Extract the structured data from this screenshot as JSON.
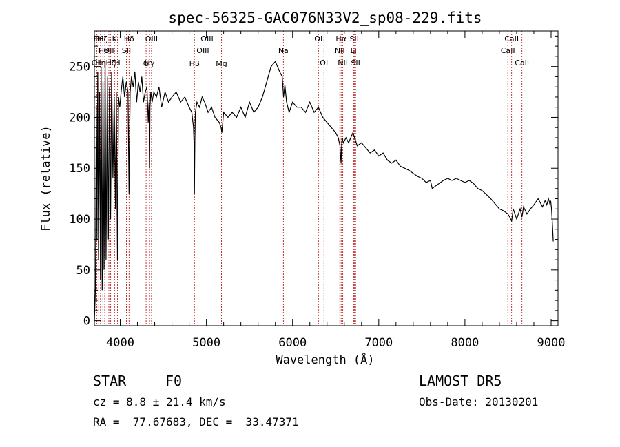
{
  "chart_data": {
    "type": "line",
    "title": "spec-56325-GAC076N33V2_sp08-229.fits",
    "xlabel": "Wavelength (Å)",
    "ylabel": "Flux (relative)",
    "xlim": [
      3700,
      9080
    ],
    "ylim": [
      -5,
      285
    ],
    "xticks": [
      4000,
      5000,
      6000,
      7000,
      8000,
      9000
    ],
    "yticks": [
      0,
      50,
      100,
      150,
      200,
      250
    ],
    "grid": false,
    "series": [
      {
        "color": "#000000",
        "x": [
          3700,
          3712,
          3722,
          3730,
          3738,
          3748,
          3760,
          3770,
          3778,
          3790,
          3800,
          3812,
          3825,
          3835,
          3850,
          3862,
          3875,
          3888,
          3900,
          3915,
          3930,
          3945,
          3955,
          3968,
          3980,
          3995,
          4010,
          4030,
          4050,
          4070,
          4090,
          4102,
          4115,
          4130,
          4150,
          4170,
          4190,
          4210,
          4230,
          4250,
          4270,
          4290,
          4310,
          4325,
          4335,
          4340,
          4345,
          4355,
          4370,
          4390,
          4420,
          4450,
          4480,
          4520,
          4560,
          4600,
          4650,
          4700,
          4750,
          4800,
          4830,
          4850,
          4856,
          4861,
          4866,
          4872,
          4890,
          4920,
          4950,
          4980,
          5020,
          5060,
          5100,
          5150,
          5170,
          5180,
          5200,
          5250,
          5300,
          5350,
          5400,
          5450,
          5500,
          5550,
          5600,
          5650,
          5700,
          5750,
          5800,
          5850,
          5880,
          5895,
          5910,
          5930,
          5960,
          6000,
          6050,
          6100,
          6150,
          6200,
          6250,
          6300,
          6350,
          6400,
          6450,
          6500,
          6530,
          6550,
          6558,
          6563,
          6568,
          6575,
          6590,
          6620,
          6650,
          6700,
          6720,
          6750,
          6800,
          6850,
          6900,
          6950,
          7000,
          7050,
          7100,
          7150,
          7200,
          7250,
          7300,
          7350,
          7400,
          7450,
          7500,
          7550,
          7600,
          7620,
          7650,
          7700,
          7750,
          7800,
          7850,
          7900,
          7950,
          8000,
          8050,
          8100,
          8150,
          8200,
          8250,
          8300,
          8350,
          8400,
          8450,
          8498,
          8520,
          8542,
          8560,
          8600,
          8640,
          8662,
          8680,
          8720,
          8760,
          8800,
          8850,
          8900,
          8930,
          8950,
          8970,
          8985,
          8995,
          9005,
          9015,
          9025
        ],
        "y": [
          0,
          30,
          210,
          80,
          245,
          60,
          225,
          40,
          250,
          30,
          235,
          50,
          255,
          60,
          240,
          80,
          230,
          100,
          245,
          140,
          220,
          110,
          225,
          60,
          220,
          210,
          225,
          240,
          220,
          235,
          225,
          125,
          225,
          240,
          230,
          245,
          215,
          235,
          225,
          240,
          215,
          225,
          230,
          195,
          215,
          150,
          210,
          225,
          215,
          225,
          220,
          230,
          210,
          225,
          215,
          220,
          225,
          215,
          220,
          210,
          205,
          190,
          175,
          125,
          180,
          205,
          215,
          210,
          220,
          215,
          205,
          210,
          200,
          195,
          190,
          185,
          205,
          200,
          205,
          200,
          210,
          200,
          215,
          205,
          210,
          220,
          235,
          250,
          255,
          245,
          240,
          220,
          232,
          215,
          205,
          215,
          210,
          210,
          205,
          215,
          205,
          210,
          200,
          195,
          190,
          185,
          180,
          172,
          160,
          155,
          170,
          180,
          175,
          180,
          175,
          185,
          180,
          172,
          175,
          170,
          165,
          168,
          162,
          165,
          158,
          155,
          158,
          152,
          150,
          148,
          145,
          142,
          140,
          136,
          138,
          130,
          132,
          135,
          138,
          140,
          138,
          140,
          138,
          136,
          138,
          135,
          130,
          128,
          124,
          120,
          115,
          110,
          108,
          105,
          102,
          98,
          110,
          100,
          110,
          102,
          112,
          105,
          110,
          114,
          120,
          112,
          118,
          114,
          120,
          115,
          118,
          110,
          95,
          78
        ]
      }
    ],
    "lines": [
      {
        "x": 3727,
        "label": "OII",
        "row": 3
      },
      {
        "x": 3750,
        "label": "Hθ",
        "row": 1
      },
      {
        "x": 3771,
        "label": "Hη",
        "row": 3
      },
      {
        "x": 3798,
        "label": "Hζ",
        "row": 1
      },
      {
        "x": 3820,
        "label": "HeI",
        "row": 2
      },
      {
        "x": 3868,
        "label": "OII",
        "row": 2
      },
      {
        "x": 3889,
        "label": "Hζ",
        "row": 3
      },
      {
        "x": 3934,
        "label": "K",
        "row": 1
      },
      {
        "x": 3968,
        "label": "H",
        "row": 3
      },
      {
        "x": 4072,
        "label": "SII",
        "row": 2
      },
      {
        "x": 4102,
        "label": "Hδ",
        "row": 1
      },
      {
        "x": 4300,
        "label": "G",
        "row": 4
      },
      {
        "x": 4340,
        "label": "Hγ",
        "row": 3
      },
      {
        "x": 4363,
        "label": "OIII",
        "row": 1
      },
      {
        "x": 4861,
        "label": "Hβ",
        "row": 4
      },
      {
        "x": 4959,
        "label": "OIII",
        "row": 2
      },
      {
        "x": 5007,
        "label": "OIII",
        "row": 1
      },
      {
        "x": 5175,
        "label": "Mg",
        "row": 4
      },
      {
        "x": 5893,
        "label": "Na",
        "row": 2
      },
      {
        "x": 6300,
        "label": "OI",
        "row": 1
      },
      {
        "x": 6364,
        "label": "OI",
        "row": 3
      },
      {
        "x": 6548,
        "label": "NII",
        "row": 2
      },
      {
        "x": 6563,
        "label": "Hα",
        "row": 1
      },
      {
        "x": 6583,
        "label": "NII",
        "row": 3
      },
      {
        "x": 6708,
        "label": "Li",
        "row": 2
      },
      {
        "x": 6716,
        "label": "SII",
        "row": 1
      },
      {
        "x": 6731,
        "label": "SII",
        "row": 3
      },
      {
        "x": 8498,
        "label": "CaII",
        "row": 2
      },
      {
        "x": 8542,
        "label": "CaII",
        "row": 1
      },
      {
        "x": 8662,
        "label": "CaII",
        "row": 3
      }
    ]
  },
  "footer": {
    "class_label": "STAR",
    "subclass": "F0",
    "survey": "LAMOST DR5",
    "redshift": "cz = 8.8 ± 21.4 km/s",
    "obs_date": "Obs-Date: 20130201",
    "coords": "RA =  77.67683, DEC =  33.47371"
  }
}
